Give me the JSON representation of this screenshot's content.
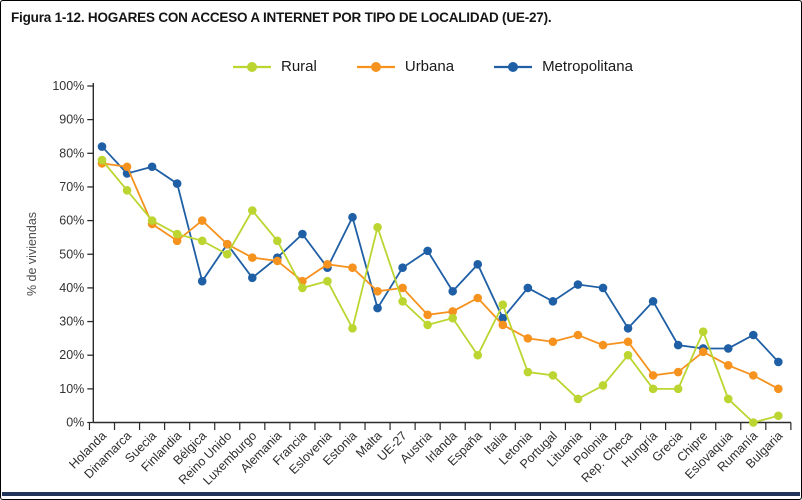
{
  "figure": {
    "title": "Figura 1-12. HOGARES CON ACCESO A INTERNET POR TIPO DE LOCALIDAD (UE-27).",
    "y_axis_title": "% de viviendas"
  },
  "colors": {
    "rural": "#bcd531",
    "urbana": "#f6921e",
    "metropolitana": "#1f5fa5",
    "axis": "#2b2b2b",
    "tick_label": "#333333",
    "bottom_rule": "#22345a"
  },
  "chart_data": {
    "type": "line",
    "title": "Figura 1-12. HOGARES CON ACCESO A INTERNET POR TIPO DE LOCALIDAD (UE-27).",
    "xlabel": "",
    "ylabel": "% de viviendas",
    "ylim": [
      0,
      100
    ],
    "ytick_step": 10,
    "ytick_labels": [
      "0%",
      "10%",
      "20%",
      "30%",
      "40%",
      "50%",
      "60%",
      "70%",
      "80%",
      "90%",
      "100%"
    ],
    "grid": false,
    "legend_position": "top-center",
    "marker": "circle",
    "categories": [
      "Holanda",
      "Dinamarca",
      "Suecia",
      "Finlandia",
      "Bélgica",
      "Reino Unido",
      "Luxemburgo",
      "Alemania",
      "Francia",
      "Eslovenia",
      "Estonia",
      "Malta",
      "UE-27",
      "Austria",
      "Irlanda",
      "España",
      "Italia",
      "Letonia",
      "Portugal",
      "Lituania",
      "Polonia",
      "Rep. Checa",
      "Hungría",
      "Grecia",
      "Chipre",
      "Eslovaquia",
      "Rumanía",
      "Bulgaria"
    ],
    "series": [
      {
        "name": "Rural",
        "color": "#bcd531",
        "values": [
          78,
          69,
          60,
          56,
          54,
          50,
          63,
          54,
          40,
          42,
          28,
          58,
          36,
          29,
          31,
          20,
          35,
          15,
          14,
          7,
          11,
          20,
          10,
          10,
          27,
          7,
          0,
          2
        ]
      },
      {
        "name": "Urbana",
        "color": "#f6921e",
        "values": [
          77,
          76,
          59,
          54,
          60,
          53,
          49,
          48,
          42,
          47,
          46,
          39,
          40,
          32,
          33,
          37,
          29,
          25,
          24,
          26,
          23,
          24,
          14,
          15,
          21,
          17,
          14,
          10
        ]
      },
      {
        "name": "Metropolitana",
        "color": "#1f5fa5",
        "values": [
          82,
          74,
          76,
          71,
          42,
          53,
          43,
          49,
          56,
          46,
          61,
          34,
          46,
          51,
          39,
          47,
          31,
          40,
          36,
          41,
          40,
          28,
          36,
          23,
          22,
          22,
          26,
          18
        ]
      }
    ]
  }
}
